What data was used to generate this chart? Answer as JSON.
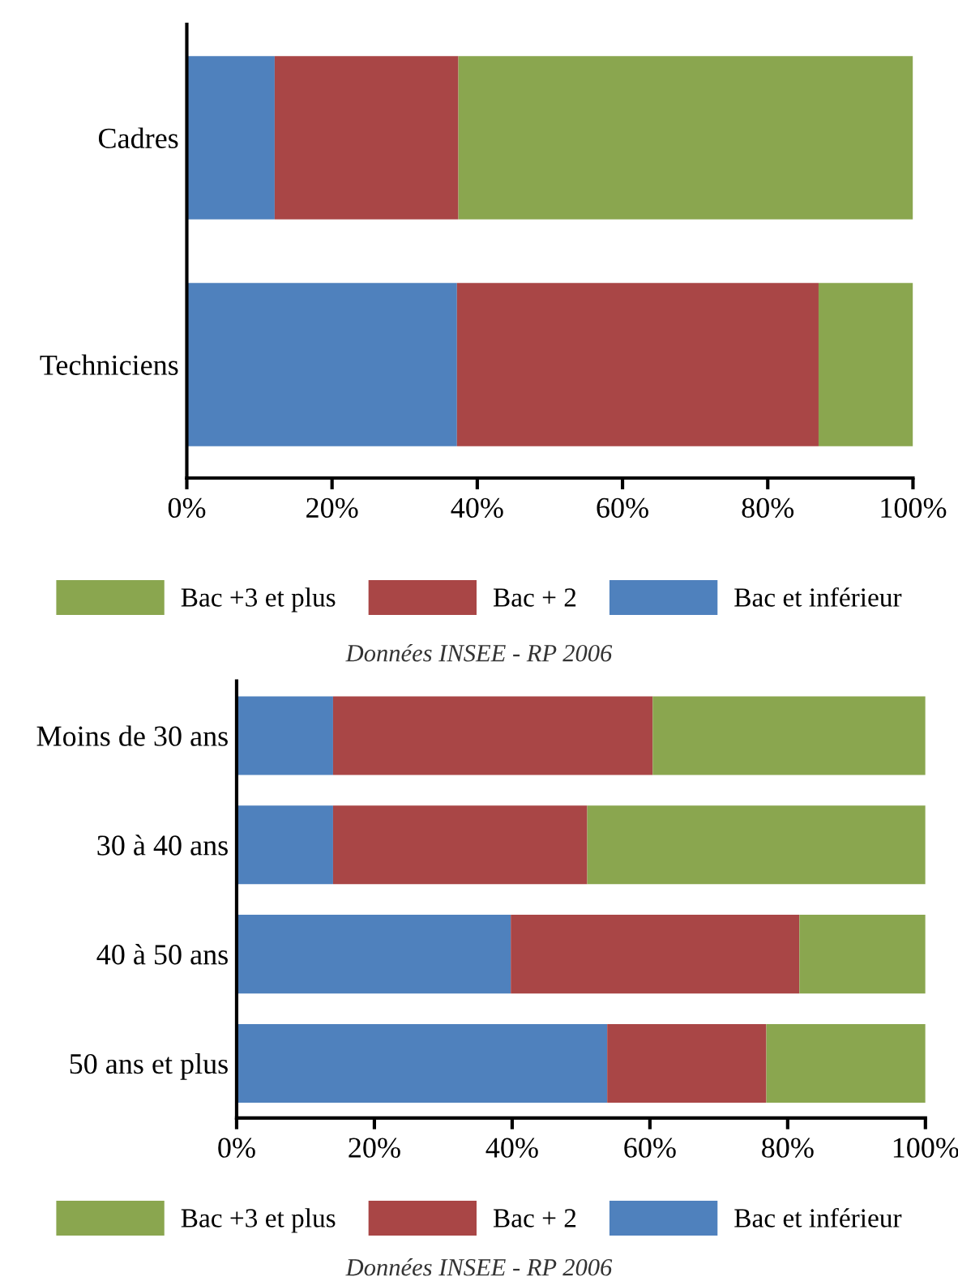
{
  "chart_data": [
    {
      "type": "bar",
      "orientation": "horizontal",
      "stacked": true,
      "categories": [
        "Cadres",
        "Techniciens"
      ],
      "series": [
        {
          "name": "Bac et inférieur",
          "color": "#4f81bd",
          "values": [
            12.1,
            37.2
          ]
        },
        {
          "name": "Bac + 2",
          "color": "#a94646",
          "values": [
            25.3,
            49.8
          ]
        },
        {
          "name": "Bac +3 et plus",
          "color": "#8aa64f",
          "values": [
            62.6,
            13.0
          ]
        }
      ],
      "xlim": [
        0,
        100
      ],
      "xticks": [
        {
          "value": 0,
          "label": "0%"
        },
        {
          "value": 20,
          "label": "20%"
        },
        {
          "value": 40,
          "label": "40%"
        },
        {
          "value": 60,
          "label": "60%"
        },
        {
          "value": 80,
          "label": "80%"
        },
        {
          "value": 100,
          "label": "100%"
        }
      ],
      "legend": "bottom",
      "grid": false,
      "annotations": [
        "Données INSEE - RP 2006"
      ]
    },
    {
      "type": "bar",
      "orientation": "horizontal",
      "stacked": true,
      "categories": [
        "Moins de 30 ans",
        "30 à 40 ans",
        "40 à 50 ans",
        "50 ans et plus"
      ],
      "series": [
        {
          "name": "Bac et inférieur",
          "color": "#4f81bd",
          "values": [
            14.0,
            14.0,
            39.8,
            53.8
          ]
        },
        {
          "name": "Bac + 2",
          "color": "#a94646",
          "values": [
            46.4,
            36.9,
            41.9,
            23.1
          ]
        },
        {
          "name": "Bac +3 et plus",
          "color": "#8aa64f",
          "values": [
            39.6,
            49.1,
            18.3,
            23.1
          ]
        }
      ],
      "xlim": [
        0,
        100
      ],
      "xticks": [
        {
          "value": 0,
          "label": "0%"
        },
        {
          "value": 20,
          "label": "20%"
        },
        {
          "value": 40,
          "label": "40%"
        },
        {
          "value": 60,
          "label": "60%"
        },
        {
          "value": 80,
          "label": "80%"
        },
        {
          "value": 100,
          "label": "100%"
        }
      ],
      "legend": "bottom",
      "grid": false,
      "annotations": [
        "Données INSEE - RP 2006"
      ]
    }
  ]
}
